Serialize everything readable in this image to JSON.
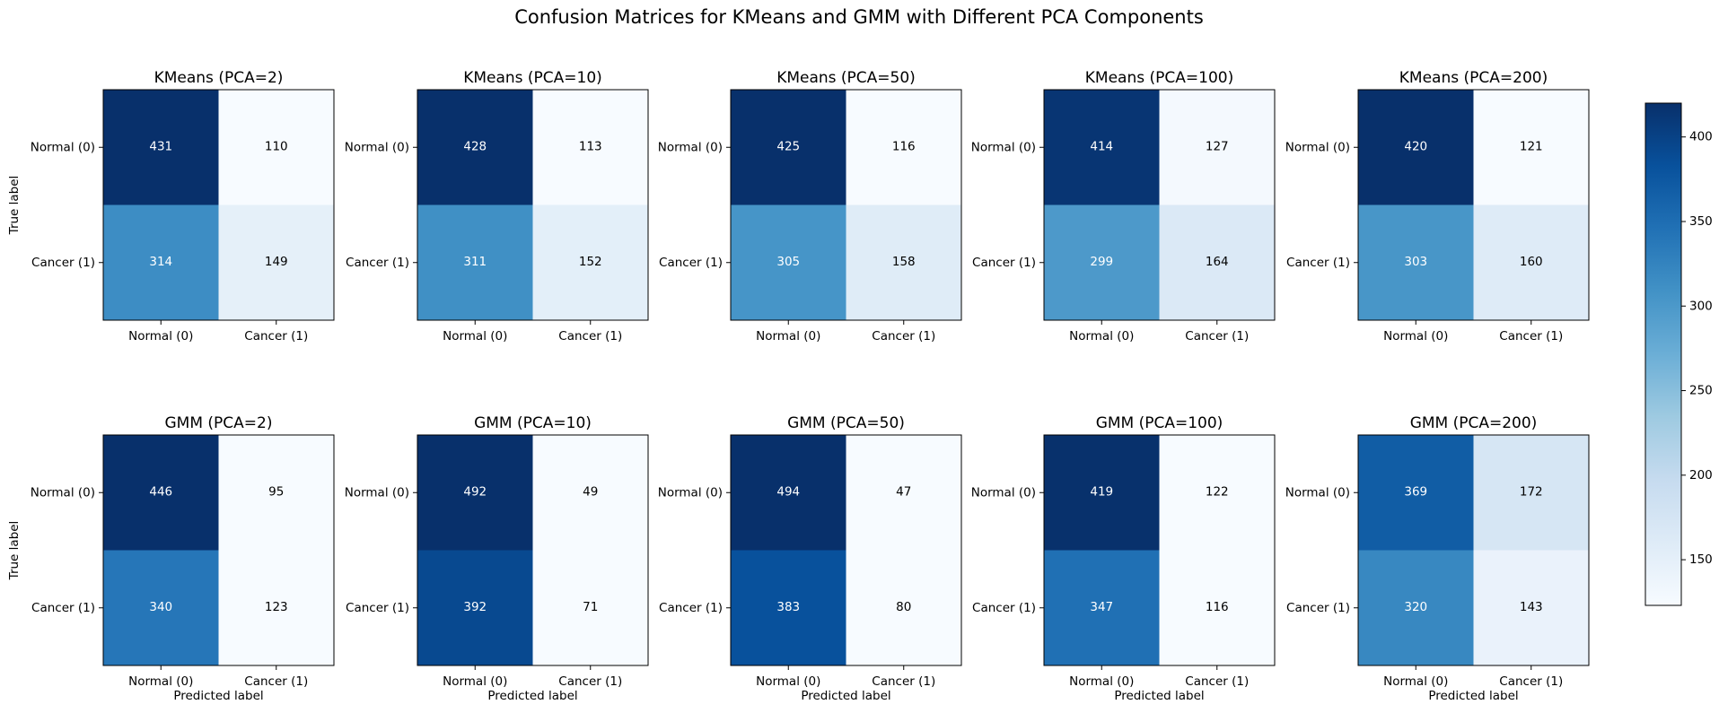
{
  "figure": {
    "title": "Confusion Matrices for KMeans and GMM with Different PCA Components"
  },
  "colors": {
    "cmap": [
      "#f7fbff",
      "#deebf7",
      "#c6dbef",
      "#9ecae1",
      "#6baed6",
      "#4292c6",
      "#2171b5",
      "#08519c",
      "#08306b"
    ],
    "text_light": "#ffffff",
    "text_dark": "#000000"
  },
  "chart_data": {
    "type": "heatmap",
    "class_labels": [
      "Normal (0)",
      "Cancer (1)"
    ],
    "xlabel": "Predicted label",
    "ylabel": "True label",
    "colorbar": {
      "range": [
        123,
        420
      ],
      "ticks": [
        150,
        200,
        250,
        300,
        350,
        400
      ]
    },
    "matrices": [
      {
        "title": "KMeans (PCA=2)",
        "values": [
          [
            431,
            110
          ],
          [
            314,
            149
          ]
        ]
      },
      {
        "title": "KMeans (PCA=10)",
        "values": [
          [
            428,
            113
          ],
          [
            311,
            152
          ]
        ]
      },
      {
        "title": "KMeans (PCA=50)",
        "values": [
          [
            425,
            116
          ],
          [
            305,
            158
          ]
        ]
      },
      {
        "title": "KMeans (PCA=100)",
        "values": [
          [
            414,
            127
          ],
          [
            299,
            164
          ]
        ]
      },
      {
        "title": "KMeans (PCA=200)",
        "values": [
          [
            420,
            121
          ],
          [
            303,
            160
          ]
        ]
      },
      {
        "title": "GMM (PCA=2)",
        "values": [
          [
            446,
            95
          ],
          [
            340,
            123
          ]
        ]
      },
      {
        "title": "GMM (PCA=10)",
        "values": [
          [
            492,
            49
          ],
          [
            392,
            71
          ]
        ]
      },
      {
        "title": "GMM (PCA=50)",
        "values": [
          [
            494,
            47
          ],
          [
            383,
            80
          ]
        ]
      },
      {
        "title": "GMM (PCA=100)",
        "values": [
          [
            419,
            122
          ],
          [
            347,
            116
          ]
        ]
      },
      {
        "title": "GMM (PCA=200)",
        "values": [
          [
            369,
            172
          ],
          [
            320,
            143
          ]
        ]
      }
    ]
  }
}
